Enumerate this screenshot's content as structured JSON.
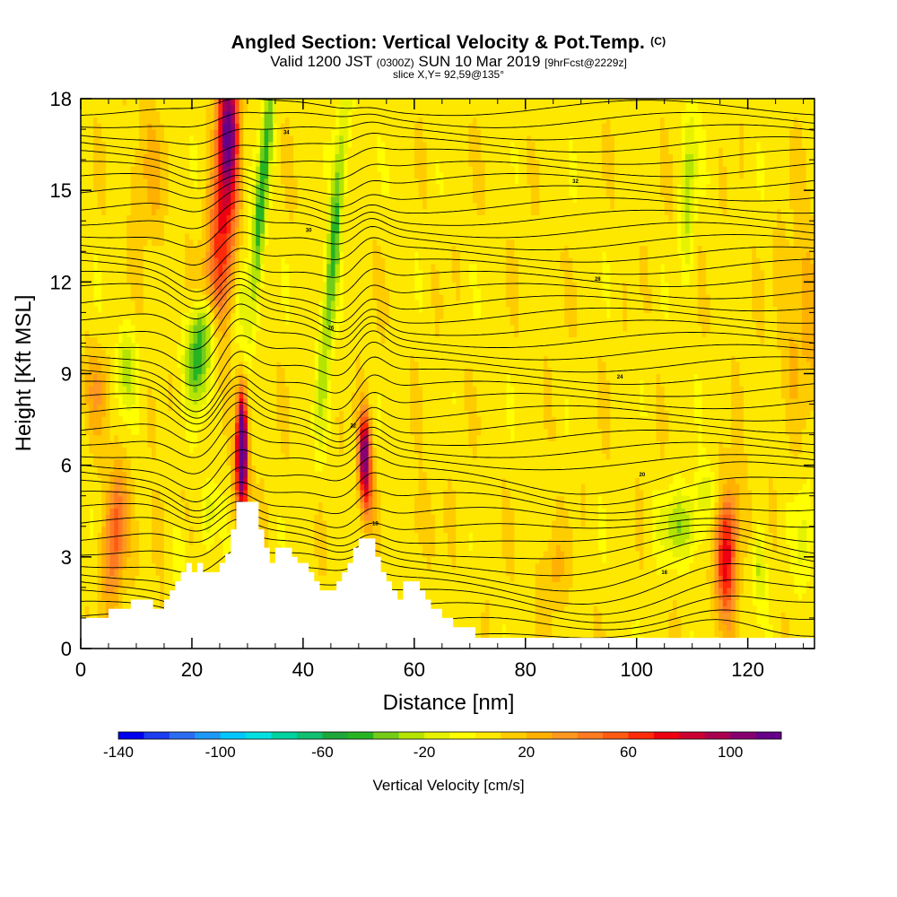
{
  "header": {
    "title": "Angled Section: Vertical Velocity & Pot.Temp.",
    "title_mark": "(C)",
    "valid_prefix": "Valid 1200 JST",
    "valid_zulu": "(0300Z)",
    "valid_date": "SUN 10 Mar 2019",
    "forecast": "[9hrFcst@2229z]",
    "slice": "slice X,Y= 92,59@135°"
  },
  "chart_data": {
    "type": "heatmap",
    "xlabel": "Distance [nm]",
    "ylabel": "Height [Kft MSL]",
    "xlim": [
      0,
      132
    ],
    "ylim": [
      0,
      18
    ],
    "x_ticks": [
      0,
      20,
      40,
      60,
      80,
      100,
      120
    ],
    "y_ticks": [
      0,
      3,
      6,
      9,
      12,
      15,
      18
    ],
    "colorbar": {
      "label": "Vertical Velocity [cm/s]",
      "range": [
        -140,
        120
      ],
      "step": 10,
      "tick_labels": [
        -140,
        -100,
        -60,
        -20,
        20,
        60,
        100
      ],
      "colors": [
        "#0000ee",
        "#1c3cf0",
        "#2c6cf2",
        "#1e98f6",
        "#00c8ff",
        "#00e0e0",
        "#00d2a0",
        "#10c070",
        "#1ea83a",
        "#28b422",
        "#74cc18",
        "#b4e400",
        "#e6f200",
        "#ffff00",
        "#ffe800",
        "#ffcc00",
        "#ffb000",
        "#ff9820",
        "#ff7a20",
        "#ff5a14",
        "#ff2a08",
        "#ee0010",
        "#cc0030",
        "#aa0050",
        "#880070",
        "#660088"
      ]
    },
    "terrain_profile": [
      [
        0,
        1
      ],
      [
        5,
        1
      ],
      [
        5,
        1.3
      ],
      [
        9,
        1.3
      ],
      [
        9,
        1.6
      ],
      [
        13,
        1.6
      ],
      [
        13,
        1.3
      ],
      [
        15,
        1.3
      ],
      [
        15,
        1.6
      ],
      [
        16,
        1.6
      ],
      [
        16,
        1.9
      ],
      [
        17,
        1.9
      ],
      [
        17,
        2.2
      ],
      [
        18,
        2.2
      ],
      [
        18,
        2.5
      ],
      [
        19,
        2.5
      ],
      [
        19,
        2.8
      ],
      [
        20,
        2.8
      ],
      [
        20,
        2.5
      ],
      [
        21,
        2.5
      ],
      [
        21,
        2.8
      ],
      [
        22,
        2.8
      ],
      [
        22,
        2.5
      ],
      [
        25,
        2.5
      ],
      [
        25,
        2.8
      ],
      [
        26,
        2.8
      ],
      [
        26,
        3.1
      ],
      [
        27,
        3.1
      ],
      [
        27,
        3.9
      ],
      [
        28,
        3.9
      ],
      [
        28,
        4.8
      ],
      [
        32,
        4.8
      ],
      [
        32,
        3.9
      ],
      [
        33,
        3.9
      ],
      [
        33,
        3.3
      ],
      [
        34,
        3.3
      ],
      [
        34,
        2.8
      ],
      [
        35,
        2.8
      ],
      [
        35,
        3.3
      ],
      [
        38,
        3.3
      ],
      [
        38,
        3.0
      ],
      [
        39,
        3.0
      ],
      [
        39,
        2.8
      ],
      [
        41,
        2.8
      ],
      [
        41,
        2.5
      ],
      [
        42,
        2.5
      ],
      [
        42,
        2.2
      ],
      [
        43,
        2.2
      ],
      [
        43,
        1.9
      ],
      [
        46,
        1.9
      ],
      [
        46,
        2.2
      ],
      [
        47,
        2.2
      ],
      [
        47,
        2.5
      ],
      [
        48,
        2.5
      ],
      [
        48,
        2.8
      ],
      [
        49,
        2.8
      ],
      [
        49,
        3.3
      ],
      [
        50,
        3.3
      ],
      [
        50,
        3.6
      ],
      [
        53,
        3.6
      ],
      [
        53,
        3.0
      ],
      [
        54,
        3.0
      ],
      [
        54,
        2.5
      ],
      [
        55,
        2.5
      ],
      [
        55,
        2.2
      ],
      [
        56,
        2.2
      ],
      [
        56,
        1.9
      ],
      [
        57,
        1.9
      ],
      [
        57,
        1.6
      ],
      [
        58,
        1.6
      ],
      [
        58,
        2.2
      ],
      [
        61,
        2.2
      ],
      [
        61,
        1.9
      ],
      [
        62,
        1.9
      ],
      [
        62,
        1.6
      ],
      [
        63,
        1.6
      ],
      [
        63,
        1.3
      ],
      [
        65,
        1.3
      ],
      [
        65,
        1.0
      ],
      [
        67,
        1.0
      ],
      [
        67,
        0.7
      ],
      [
        71,
        0.7
      ],
      [
        71,
        0.35
      ],
      [
        132,
        0.35
      ]
    ],
    "theta_labels": [
      "14",
      "16",
      "18",
      "20",
      "22",
      "24",
      "26",
      "28",
      "30",
      "32",
      "34"
    ]
  }
}
